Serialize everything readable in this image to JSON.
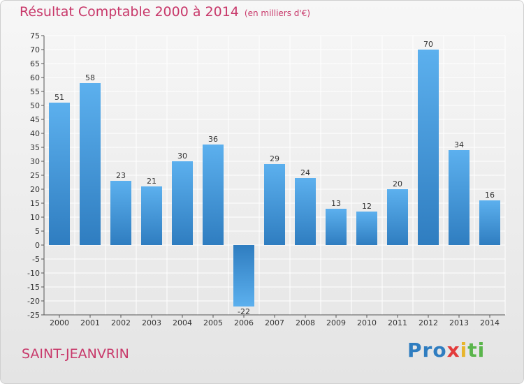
{
  "chart_data": {
    "type": "bar",
    "title": "Résultat Comptable 2000 à 2014",
    "subtitle": "(en milliers d'€)",
    "categories": [
      "2000",
      "2001",
      "2002",
      "2003",
      "2004",
      "2005",
      "2006",
      "2007",
      "2008",
      "2009",
      "2010",
      "2011",
      "2012",
      "2013",
      "2014"
    ],
    "values": [
      51,
      58,
      23,
      21,
      30,
      36,
      -22,
      29,
      24,
      13,
      12,
      20,
      70,
      34,
      16
    ],
    "ylim": [
      -25,
      75
    ],
    "ytick_step": 5,
    "grid": true,
    "xlabel": "",
    "ylabel": ""
  },
  "footer": {
    "city": "SAINT-JEANVRIN",
    "logo": {
      "p1": "Pro",
      "p2": "x",
      "p3": "i",
      "p4": "ti"
    }
  },
  "colors": {
    "title": "#c8386a",
    "bar_light": "#5cb0ee",
    "bar_dark": "#2f7dc0",
    "grid": "#ffffff"
  }
}
